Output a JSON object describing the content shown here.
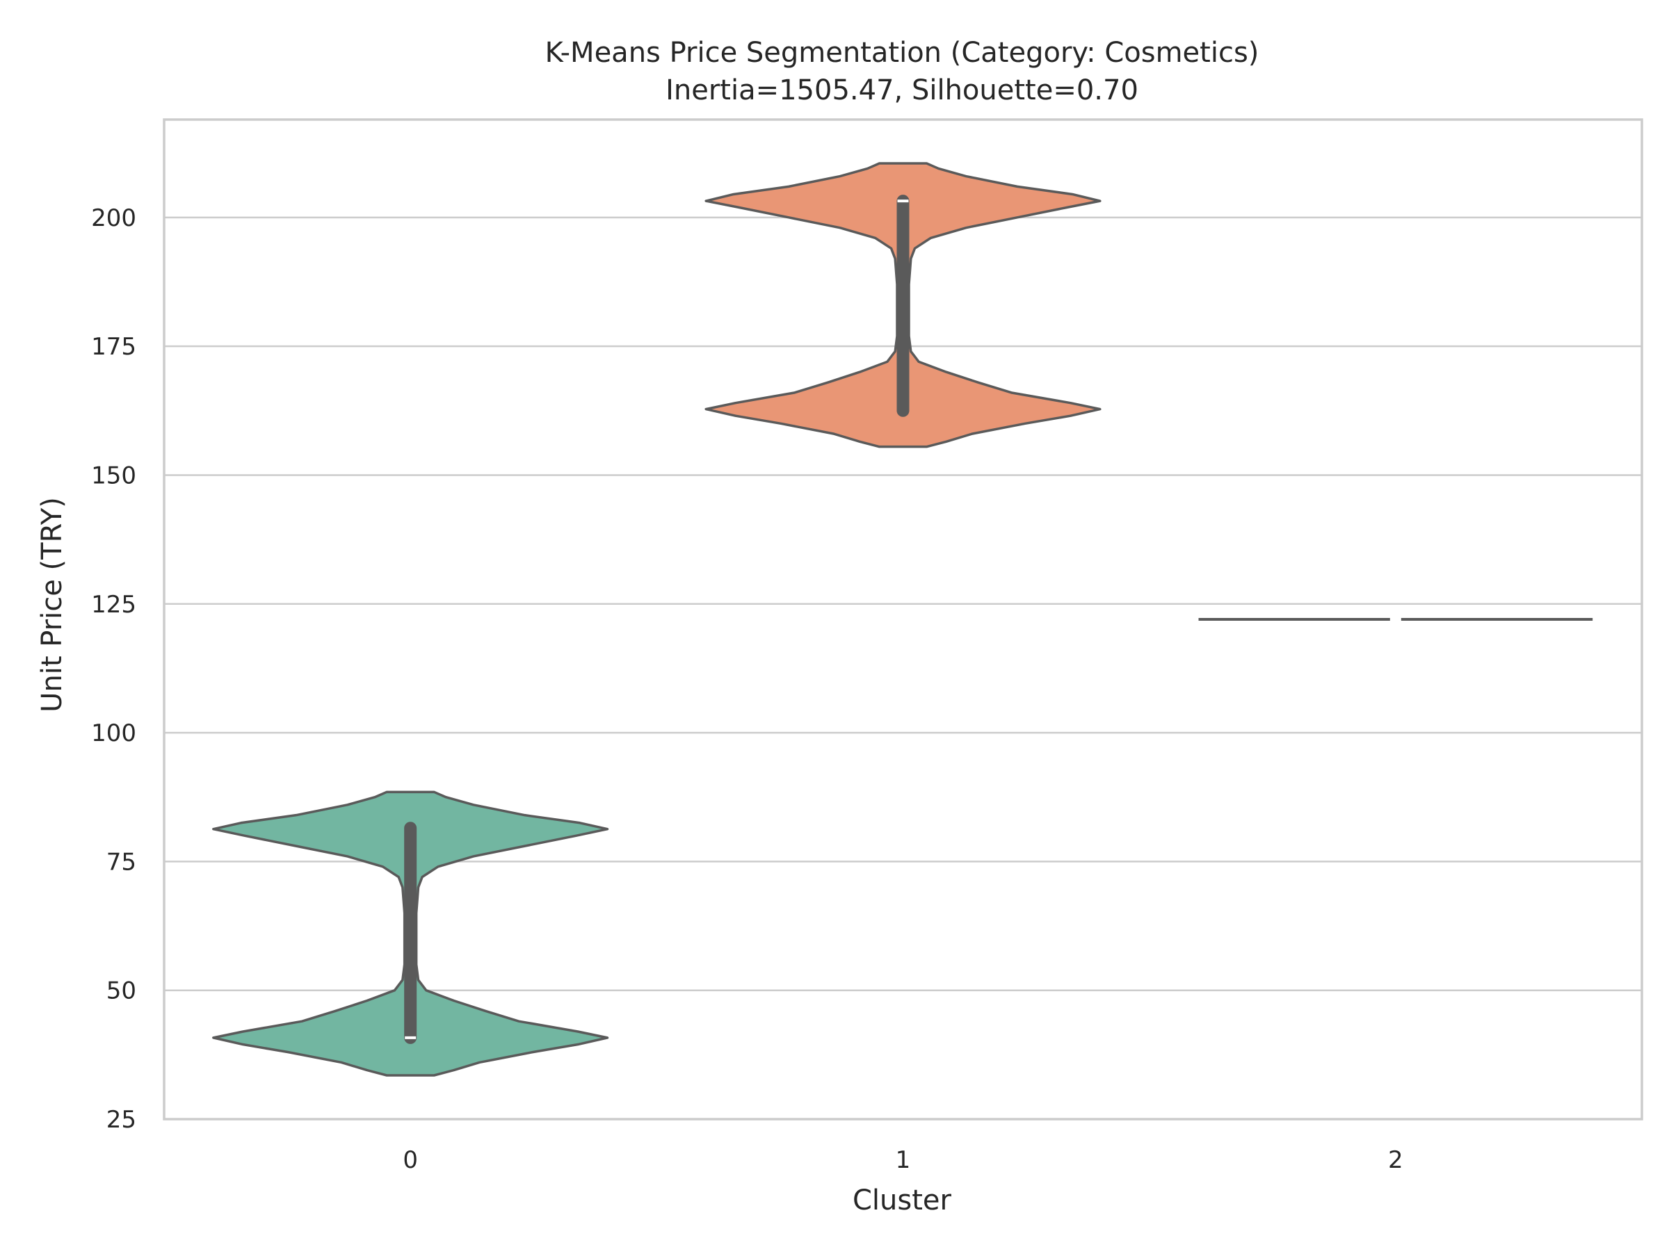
{
  "chart_data": {
    "type": "violin",
    "title": "K-Means Price Segmentation (Category: Cosmetics)",
    "subtitle": "Inertia=1505.47, Silhouette=0.70",
    "xlabel": "Cluster",
    "ylabel": "Unit Price (TRY)",
    "categories": [
      "0",
      "1",
      "2"
    ],
    "ylim": [
      25,
      219
    ],
    "yticks": [
      25,
      50,
      75,
      100,
      125,
      150,
      175,
      200
    ],
    "ytick_labels": [
      "25",
      "50",
      "75",
      "100",
      "125",
      "150",
      "175",
      "200"
    ],
    "grid": true,
    "colors": {
      "0": "#72b6a1",
      "1": "#e99675",
      "2": "#8da0cb",
      "outline": "#5a5a5a",
      "grid": "#cccccc",
      "spine": "#cccccc",
      "median": "#ffffff"
    },
    "series": [
      {
        "cluster": "0",
        "min": 33.5,
        "max": 88.5,
        "median": 40.8,
        "q1": 40.8,
        "q3": 81.5,
        "whisker_low": 40.8,
        "whisker_high": 82.0,
        "density": [
          [
            33.5,
            0.12
          ],
          [
            34.5,
            0.22
          ],
          [
            36,
            0.35
          ],
          [
            38,
            0.62
          ],
          [
            39.5,
            0.85
          ],
          [
            40.8,
            1.0
          ],
          [
            42,
            0.85
          ],
          [
            44,
            0.55
          ],
          [
            46,
            0.38
          ],
          [
            48,
            0.22
          ],
          [
            50,
            0.08
          ],
          [
            52,
            0.04
          ],
          [
            55,
            0.03
          ],
          [
            60,
            0.03
          ],
          [
            65,
            0.03
          ],
          [
            70,
            0.04
          ],
          [
            72,
            0.06
          ],
          [
            74,
            0.14
          ],
          [
            76,
            0.32
          ],
          [
            78,
            0.58
          ],
          [
            80,
            0.84
          ],
          [
            81.3,
            1.0
          ],
          [
            82.5,
            0.86
          ],
          [
            84,
            0.58
          ],
          [
            86,
            0.32
          ],
          [
            87.5,
            0.18
          ],
          [
            88.5,
            0.12
          ]
        ]
      },
      {
        "cluster": "1",
        "min": 155.5,
        "max": 210.5,
        "median": 203.2,
        "q1": 162.5,
        "q3": 203.2,
        "whisker_low": 162.0,
        "whisker_high": 203.8,
        "density": [
          [
            155.5,
            0.12
          ],
          [
            156.5,
            0.22
          ],
          [
            158,
            0.35
          ],
          [
            160,
            0.62
          ],
          [
            161.5,
            0.85
          ],
          [
            162.8,
            1.0
          ],
          [
            164,
            0.85
          ],
          [
            166,
            0.55
          ],
          [
            168,
            0.38
          ],
          [
            170,
            0.22
          ],
          [
            172,
            0.08
          ],
          [
            174,
            0.04
          ],
          [
            177,
            0.03
          ],
          [
            182,
            0.03
          ],
          [
            187,
            0.03
          ],
          [
            192,
            0.04
          ],
          [
            194,
            0.06
          ],
          [
            196,
            0.14
          ],
          [
            198,
            0.32
          ],
          [
            200,
            0.58
          ],
          [
            202,
            0.84
          ],
          [
            203.2,
            1.0
          ],
          [
            204.5,
            0.86
          ],
          [
            206,
            0.58
          ],
          [
            208,
            0.32
          ],
          [
            209.5,
            0.18
          ],
          [
            210.5,
            0.12
          ]
        ]
      },
      {
        "cluster": "2",
        "min": 122,
        "max": 122,
        "median": 122,
        "q1": 122,
        "q3": 122,
        "whisker_low": 122,
        "whisker_high": 122,
        "density": []
      }
    ]
  }
}
